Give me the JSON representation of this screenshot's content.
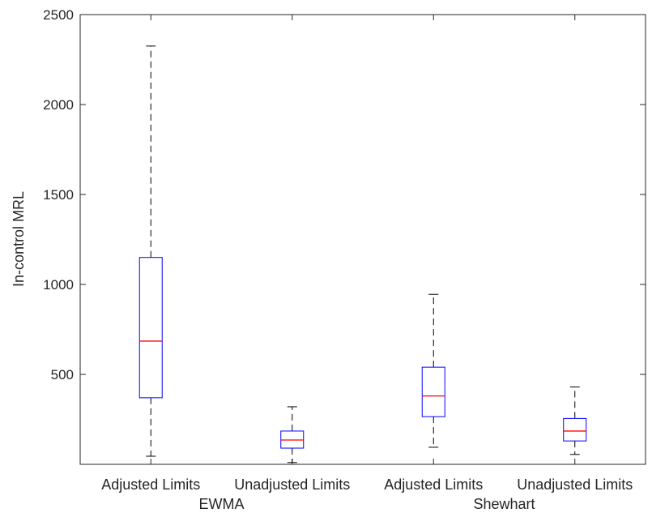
{
  "chart_data": {
    "type": "boxplot",
    "title": "",
    "xlabel": "",
    "ylabel": "In-control MRL",
    "ylim": [
      0,
      2500
    ],
    "yticks": [
      500,
      1000,
      1500,
      2000,
      2500
    ],
    "grid": false,
    "categories": [
      "Adjusted Limits",
      "Unadjusted Limits",
      "Adjusted Limits",
      "Unadjusted Limits"
    ],
    "groups": [
      {
        "label": "EWMA",
        "categories": [
          0,
          1
        ]
      },
      {
        "label": "Shewhart",
        "categories": [
          2,
          3
        ]
      }
    ],
    "boxes": [
      {
        "whisker_low": 45,
        "q1": 370,
        "median": 685,
        "q3": 1150,
        "whisker_high": 2325
      },
      {
        "whisker_low": 10,
        "q1": 90,
        "median": 135,
        "q3": 185,
        "whisker_high": 320
      },
      {
        "whisker_low": 95,
        "q1": 265,
        "median": 380,
        "q3": 540,
        "whisker_high": 945
      },
      {
        "whisker_low": 55,
        "q1": 130,
        "median": 185,
        "q3": 255,
        "whisker_high": 430
      }
    ],
    "colors": {
      "box": "#0000ff",
      "median": "#ff0000",
      "whisker": "#000000",
      "axis": "#262626"
    }
  }
}
